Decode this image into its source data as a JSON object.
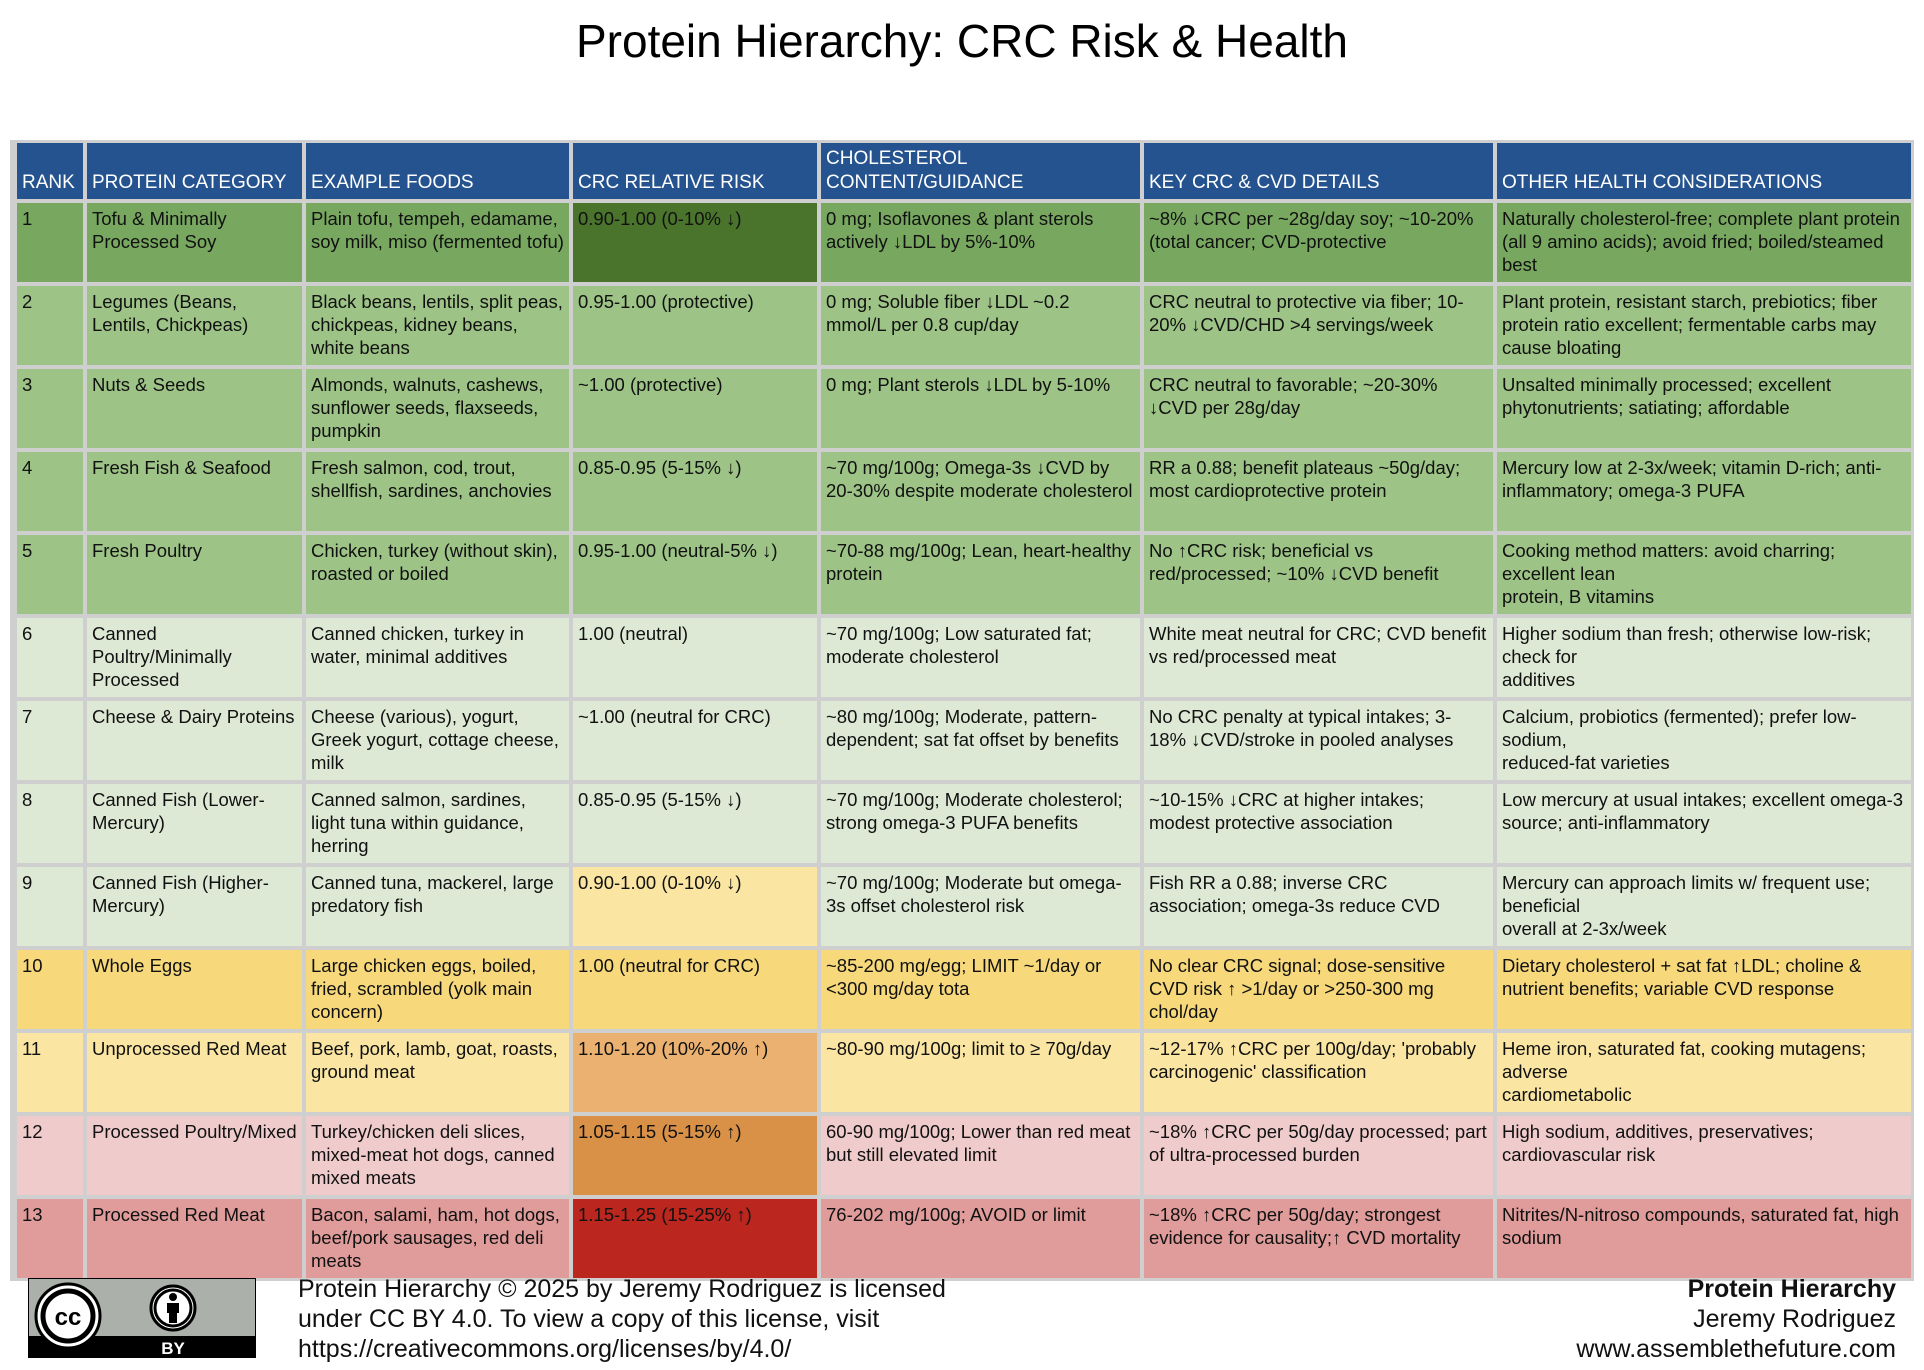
{
  "title": "Protein Hierarchy: CRC Risk & Health",
  "table": {
    "headers": [
      "RANK",
      "PROTEIN CATEGORY",
      "EXAMPLE FOODS",
      "CRC RELATIVE RISK",
      "CHOLESTEROL CONTENT/GUIDANCE",
      "KEY CRC & CVD DETAILS",
      "OTHER HEALTH CONSIDERATIONS"
    ],
    "header_color": "#25538f",
    "rows": [
      {
        "rank": "1",
        "category": "Tofu & Minimally Processed Soy",
        "foods": "Plain tofu, tempeh, edamame, soy milk, miso (fermented tofu)",
        "crc_risk": "0.90-1.00 (0-10% ↓)",
        "cholesterol": "0 mg; Isoflavones & plant sterols actively ↓LDL by 5%-10%",
        "details": "~8% ↓CRC per ~28g/day soy; ~10-20% (total cancer; CVD-protective",
        "other": "Naturally cholesterol-free; complete plant protein (all 9 amino acids); avoid fried; boiled/steamed best",
        "row_color": "#78a860",
        "risk_color": "#4a742c"
      },
      {
        "rank": "2",
        "category": "Legumes (Beans, Lentils, Chickpeas)",
        "foods": "Black beans, lentils, split peas, chickpeas, kidney beans, white beans",
        "crc_risk": "0.95-1.00 (protective)",
        "cholesterol": "0 mg; Soluble fiber ↓LDL ~0.2 mmol/L per 0.8 cup/day",
        "details": "CRC neutral to protective via fiber; 10-20% ↓CVD/CHD >4 servings/week",
        "other": "Plant protein, resistant starch, prebiotics; fiber protein ratio excellent; fermentable carbs may cause bloating",
        "row_color": "#9dc386",
        "risk_color": "#9dc386"
      },
      {
        "rank": "3",
        "category": "Nuts & Seeds",
        "foods": "Almonds, walnuts, cashews, sunflower seeds, flaxseeds, pumpkin",
        "crc_risk": "~1.00 (protective)",
        "cholesterol": "0 mg; Plant sterols ↓LDL by 5-10%",
        "details": "CRC neutral to favorable; ~20-30% ↓CVD per 28g/day",
        "other": "Unsalted minimally processed; excellent phytonutrients; satiating; affordable",
        "row_color": "#9dc386",
        "risk_color": "#9dc386"
      },
      {
        "rank": "4",
        "category": "Fresh Fish & Seafood",
        "foods": "Fresh salmon, cod, trout, shellfish, sardines, anchovies",
        "crc_risk": "0.85-0.95 (5-15% ↓)",
        "cholesterol": "~70 mg/100g; Omega-3s ↓CVD by 20-30% despite moderate cholesterol",
        "details": "RR a 0.88; benefit plateaus ~50g/day; most cardioprotective protein",
        "other": "Mercury low at 2-3x/week; vitamin D-rich; anti-inflammatory; omega-3 PUFA",
        "row_color": "#9dc386",
        "risk_color": "#9dc386"
      },
      {
        "rank": "5",
        "category": "Fresh Poultry",
        "foods": "Chicken, turkey (without skin), roasted or boiled",
        "crc_risk": "0.95-1.00 (neutral-5% ↓)",
        "cholesterol": "~70-88 mg/100g; Lean, heart-healthy protein",
        "details": "No ↑CRC risk; beneficial vs red/processed; ~10% ↓CVD benefit",
        "other": "Cooking method matters: avoid charring; excellent lean\nprotein, B vitamins",
        "row_color": "#9dc386",
        "risk_color": "#9dc386"
      },
      {
        "rank": "6",
        "category": "Canned Poultry/Minimally Processed",
        "foods": "Canned chicken, turkey in water, minimal additives",
        "crc_risk": "1.00 (neutral)",
        "cholesterol": "~70 mg/100g; Low saturated fat; moderate cholesterol",
        "details": "White meat neutral for CRC; CVD benefit vs red/processed meat",
        "other": "Higher sodium than fresh; otherwise low-risk; check for\nadditives",
        "row_color": "#dde8d5",
        "risk_color": "#dde8d5"
      },
      {
        "rank": "7",
        "category": "Cheese & Dairy Proteins",
        "foods": "Cheese (various), yogurt, Greek yogurt, cottage cheese, milk",
        "crc_risk": "~1.00 (neutral for CRC)",
        "cholesterol": "~80 mg/100g; Moderate, pattern-dependent; sat fat offset by benefits",
        "details": "No CRC penalty at typical intakes; 3-18% ↓CVD/stroke in pooled analyses",
        "other": "Calcium, probiotics (fermented); prefer low-sodium,\nreduced-fat varieties",
        "row_color": "#dde8d5",
        "risk_color": "#dde8d5"
      },
      {
        "rank": "8",
        "category": "Canned Fish (Lower-Mercury)",
        "foods": "Canned salmon, sardines, light tuna within guidance, herring",
        "crc_risk": "0.85-0.95 (5-15% ↓)",
        "cholesterol": "~70 mg/100g; Moderate cholesterol; strong omega-3 PUFA benefits",
        "details": "~10-15% ↓CRC at higher intakes; modest protective association",
        "other": "Low mercury at usual intakes; excellent omega-3 source; anti-inflammatory",
        "row_color": "#dde8d5",
        "risk_color": "#dde8d5"
      },
      {
        "rank": "9",
        "category": "Canned Fish (Higher-Mercury)",
        "foods": "Canned tuna, mackerel, large predatory fish",
        "crc_risk": "0.90-1.00 (0-10% ↓)",
        "cholesterol": "~70 mg/100g; Moderate but omega-3s offset cholesterol risk",
        "details": "Fish RR a 0.88; inverse CRC association; omega-3s reduce CVD",
        "other": "Mercury can approach limits w/ frequent use; beneficial\noverall at 2-3x/week",
        "row_color": "#dde8d5",
        "risk_color": "#fae6a2"
      },
      {
        "rank": "10",
        "category": "Whole Eggs",
        "foods": "Large chicken eggs, boiled, fried, scrambled (yolk main concern)",
        "crc_risk": "1.00 (neutral for CRC)",
        "cholesterol": "~85-200 mg/egg; LIMIT ~1/day or <300 mg/day tota",
        "details": "No clear CRC signal; dose-sensitive CVD risk ↑ >1/day or >250-300 mg chol/day",
        "other": "Dietary cholesterol + sat fat ↑LDL; choline & nutrient benefits; variable CVD response",
        "row_color": "#f7d97b",
        "risk_color": "#f7d97b"
      },
      {
        "rank": "11",
        "category": "Unprocessed Red Meat",
        "foods": "Beef, pork, lamb, goat, roasts, ground meat",
        "crc_risk": "1.10-1.20 (10%-20% ↑)",
        "cholesterol": "~80-90 mg/100g; limit to ≥ 70g/day",
        "details": "~12-17% ↑CRC per 100g/day; 'probably carcinogenic' classification",
        "other": "Heme iron, saturated fat, cooking mutagens; adverse\ncardiometabolic",
        "row_color": "#fae6a2",
        "risk_color": "#ebb171"
      },
      {
        "rank": "12",
        "category": "Processed Poultry/Mixed",
        "foods": "Turkey/chicken deli slices, mixed-meat hot dogs, canned mixed meats",
        "crc_risk": "1.05-1.15 (5-15% ↑)",
        "cholesterol": "60-90 mg/100g; Lower than red meat but still elevated limit",
        "details": "~18% ↑CRC per 50g/day processed; part of ultra-processed burden",
        "other": "High sodium, additives, preservatives; cardiovascular risk",
        "row_color": "#efcccb",
        "risk_color": "#d99148"
      },
      {
        "rank": "13",
        "category": "Processed Red Meat",
        "foods": "Bacon, salami, ham, hot dogs, beef/pork sausages, red deli meats",
        "crc_risk": "1.15-1.25 (15-25% ↑)",
        "cholesterol": "76-202 mg/100g; AVOID or limit",
        "details": "~18% ↑CRC per 50g/day; strongest evidence for causality;↑ CVD mortality",
        "other": "Nitrites/N-nitroso compounds, saturated fat, high sodium",
        "row_color": "#df9c9a",
        "risk_color": "#bb261e"
      }
    ]
  },
  "footer": {
    "cc_badge": {
      "icon_cc": "cc-icon",
      "icon_by": "attribution-icon",
      "label": "BY"
    },
    "license_line1": "Protein Hierarchy  © 2025 by Jeremy Rodriguez is licensed",
    "license_line2": "under CC BY 4.0. To view a copy of this license, visit",
    "license_line3": "https://creativecommons.org/licenses/by/4.0/",
    "right_title": "Protein Hierarchy",
    "right_author": "Jeremy Rodriguez",
    "right_site": "www.assemblethefuture.com"
  }
}
